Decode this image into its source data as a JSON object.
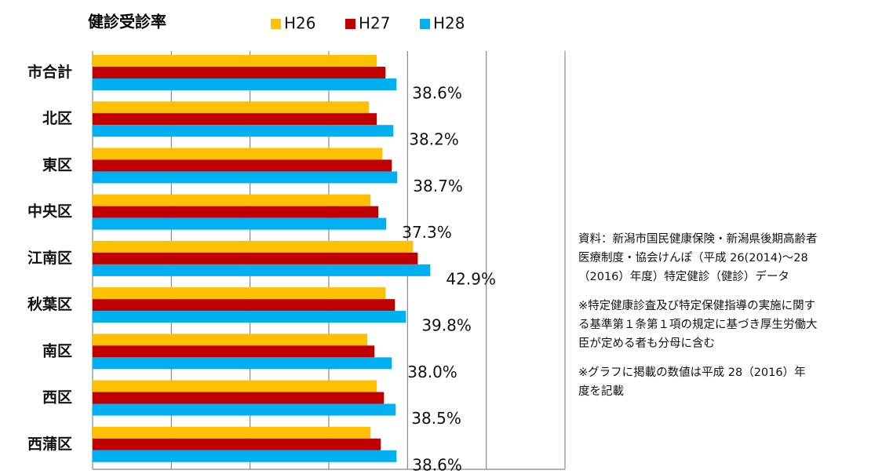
{
  "chart_data": {
    "type": "hbar",
    "title": "健診受診率",
    "categories": [
      "市合計",
      "北区",
      "東区",
      "中央区",
      "江南区",
      "秋葉区",
      "南区",
      "西区",
      "西蒲区"
    ],
    "series": [
      {
        "name": "H26",
        "color": "#ffc000",
        "values": [
          36.1,
          35.1,
          36.8,
          35.3,
          40.7,
          37.2,
          34.9,
          36.1,
          35.3
        ]
      },
      {
        "name": "H27",
        "color": "#c00000",
        "values": [
          37.2,
          36.1,
          38.0,
          36.3,
          41.3,
          38.4,
          35.8,
          37.0,
          36.6
        ]
      },
      {
        "name": "H28",
        "color": "#00b0f0",
        "values": [
          38.6,
          38.2,
          38.7,
          37.3,
          42.9,
          39.8,
          38.0,
          38.5,
          38.6
        ],
        "value_labels": [
          "38.6%",
          "38.2%",
          "38.7%",
          "37.3%",
          "42.9%",
          "39.8%",
          "38.0%",
          "38.5%",
          "38.6%"
        ]
      }
    ],
    "xlim": [
      0,
      60
    ],
    "xticks": [
      {
        "value": 0,
        "label": "0%"
      },
      {
        "value": 10,
        "label": "10%"
      },
      {
        "value": 20,
        "label": "20%"
      },
      {
        "value": 30,
        "label": "30%"
      },
      {
        "value": 40,
        "label": "40%"
      },
      {
        "value": 50,
        "label": "50%"
      },
      {
        "value": 60,
        "label": "60%"
      }
    ],
    "grid": true,
    "notes": [
      [
        "資料：新潟市国民健康保険・新潟県後期高齢者",
        "医療制度・協会けんぽ（平成 26(2014)～28",
        "（2016）年度）特定健診（健診）データ"
      ],
      [
        "※特定健康診査及び特定保健指導の実施に関す",
        "る基準第１条第１項の規定に基づき厚生労働大",
        "臣が定める者も分母に含む"
      ],
      [
        "※グラフに掲載の数値は平成 28（2016）年",
        "度を記載"
      ]
    ]
  }
}
